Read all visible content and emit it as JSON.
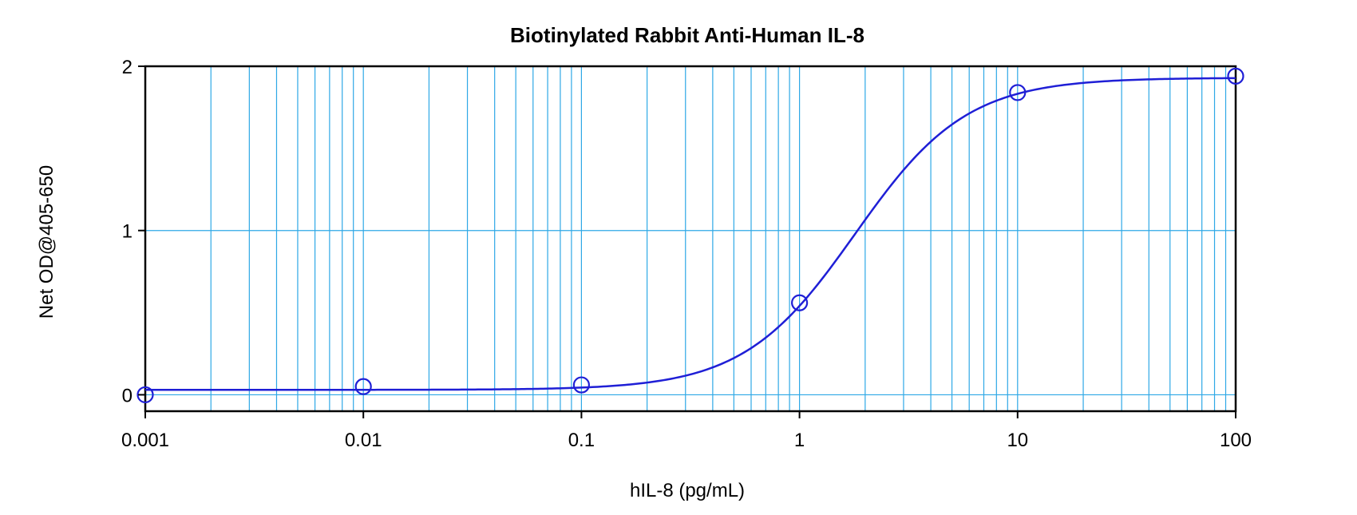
{
  "chart_data": {
    "type": "scatter",
    "title": "Biotinylated Rabbit Anti-Human IL-8",
    "xlabel": "hIL-8 (pg/mL)",
    "ylabel": "Net OD@405-650",
    "xscale": "log",
    "xlim": [
      0.001,
      100
    ],
    "ylim": [
      -0.1,
      2
    ],
    "grid": true,
    "legend": "none",
    "x_ticks": [
      {
        "value": 0.001,
        "label": "0.001"
      },
      {
        "value": 0.01,
        "label": "0.01"
      },
      {
        "value": 0.1,
        "label": "0.1"
      },
      {
        "value": 1,
        "label": "1"
      },
      {
        "value": 10,
        "label": "10"
      },
      {
        "value": 100,
        "label": "100"
      }
    ],
    "y_ticks": [
      {
        "value": 0,
        "label": "0"
      },
      {
        "value": 1,
        "label": "1"
      },
      {
        "value": 2,
        "label": "2"
      }
    ],
    "series": [
      {
        "kind": "points",
        "x": [
          0.001,
          0.01,
          0.1,
          1,
          10,
          100
        ],
        "y": [
          0.0,
          0.05,
          0.06,
          0.56,
          1.84,
          1.94
        ]
      },
      {
        "kind": "fit-curve",
        "model": "4PL",
        "params": {
          "bottom": 0.03,
          "top": 1.93,
          "ec50": 1.8,
          "hill": 1.7
        }
      }
    ],
    "colors": {
      "data": "#1f1fd6",
      "grid": "#2ea8e6",
      "frame": "#000000"
    }
  }
}
